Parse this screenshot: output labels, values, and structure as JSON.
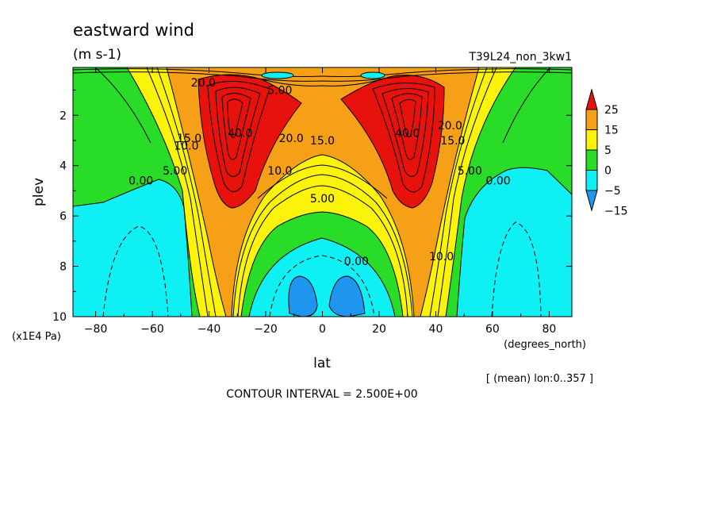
{
  "chart_data": {
    "type": "contour",
    "title": "eastward wind",
    "units": "(m s-1)",
    "experiment": "T39L24_non_3kw1",
    "xlabel": "lat",
    "xunits": "(degrees_north)",
    "ylabel": "plev",
    "yunits": "(x1E4 Pa)",
    "xlim": [
      -88,
      88
    ],
    "ylim": [
      10,
      0.1
    ],
    "x_ticks": [
      -80,
      -60,
      -40,
      -20,
      0,
      20,
      40,
      60,
      80
    ],
    "y_ticks": [
      2,
      4,
      6,
      8,
      10
    ],
    "subtitle": "[ (mean) lon:0..357 ]",
    "contour_interval_text": "CONTOUR INTERVAL = 2.500E+00",
    "colorbar": {
      "labels": [
        "25",
        "15",
        "5",
        "0",
        "-5",
        "-15"
      ],
      "colors": [
        "#e8120c",
        "#f5a017",
        "#fbf30a",
        "#28dc28",
        "#0ff0f5",
        "#1e96f0"
      ]
    },
    "contour_labels": [
      {
        "text": "40.0",
        "x": -29,
        "y": 2.7
      },
      {
        "text": "40.0",
        "x": 30,
        "y": 2.7
      },
      {
        "text": "20.0",
        "x": -11,
        "y": 2.9
      },
      {
        "text": "15.0",
        "x": 0,
        "y": 3.0
      },
      {
        "text": "10.0",
        "x": -15,
        "y": 4.2
      },
      {
        "text": "5.00",
        "x": 0,
        "y": 5.3
      },
      {
        "text": "0.00",
        "x": 12,
        "y": 7.8
      },
      {
        "text": "0.00",
        "x": -64,
        "y": 4.6
      },
      {
        "text": "0.00",
        "x": 62,
        "y": 4.6
      },
      {
        "text": "15.0",
        "x": -47,
        "y": 2.9
      },
      {
        "text": "10.0",
        "x": -48,
        "y": 3.2
      },
      {
        "text": "5.00",
        "x": -52,
        "y": 4.2
      },
      {
        "text": "15.0",
        "x": 46,
        "y": 3.0
      },
      {
        "text": "20.0",
        "x": 45,
        "y": 2.4
      },
      {
        "text": "5.00",
        "x": 52,
        "y": 4.2
      },
      {
        "text": "10.0",
        "x": 42,
        "y": 7.6
      },
      {
        "text": "20.0",
        "x": -42,
        "y": 0.7
      },
      {
        "text": "5.00",
        "x": -15,
        "y": 1.0
      }
    ]
  }
}
